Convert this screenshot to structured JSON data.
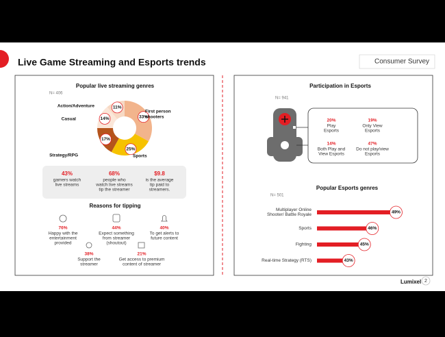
{
  "header": {
    "title": "Live Game Streaming and Esports trends",
    "tag": "Consumer Survey"
  },
  "streaming": {
    "title": "Popular live streaming genres",
    "n": "N= 406",
    "chart": {
      "type": "pie",
      "labels": [
        [
          "First person",
          "shooters"
        ],
        [
          "Sports"
        ],
        [
          "Strategy/RPG"
        ],
        [
          "Casual"
        ],
        [
          "Action/Adventure"
        ]
      ],
      "values": [
        33,
        25,
        17,
        14,
        11
      ],
      "value_labels": [
        "33%",
        "25%",
        "17%",
        "14%",
        "11%"
      ],
      "colors": [
        "#f2b48c",
        "#f6c200",
        "#b5541c",
        "#fbe6d8",
        "#f7d9c4"
      ]
    },
    "stats": [
      {
        "value": "43%",
        "lines": [
          "gamers watch",
          "live streams"
        ]
      },
      {
        "value": "68%",
        "lines": [
          "people who",
          "watch live streams",
          "tip the streamer"
        ]
      },
      {
        "value": "$9.8",
        "lines": [
          "is the average",
          "tip paid to",
          "streamers."
        ]
      }
    ],
    "reasons_title": "Reasons for tipping",
    "reasons": [
      {
        "value": "76%",
        "lines": [
          "Happy with the",
          "entertainment",
          "provided"
        ]
      },
      {
        "value": "44%",
        "lines": [
          "Expect something",
          "from streamer",
          "(shoutout)"
        ]
      },
      {
        "value": "40%",
        "lines": [
          "To get alerts to",
          "future content"
        ]
      },
      {
        "value": "38%",
        "lines": [
          "Support the",
          "streamer"
        ]
      },
      {
        "value": "21%",
        "lines": [
          "Get access to premium",
          "content of streamer"
        ]
      }
    ]
  },
  "esports": {
    "title": "Participation in Esports",
    "n": "N= 941",
    "items": [
      {
        "value": "20%",
        "lines": [
          "Play",
          "Esports"
        ]
      },
      {
        "value": "19%",
        "lines": [
          "Only View",
          "Esports"
        ]
      },
      {
        "value": "14%",
        "lines": [
          "Both Play and",
          "View Esports"
        ]
      },
      {
        "value": "47%",
        "lines": [
          "Do not play/view",
          "Esports"
        ]
      }
    ]
  },
  "genres": {
    "title": "Popular Esports genres",
    "n": "N= 501",
    "chart": {
      "type": "bar",
      "categories": [
        [
          "Multiplayer Online",
          "Shooter/ Battle Royale"
        ],
        [
          "Sports"
        ],
        [
          "Fighting"
        ],
        [
          "Real-time Strategy (RTS)"
        ]
      ],
      "values": [
        49,
        46,
        45,
        43
      ],
      "value_labels": [
        "49%",
        "46%",
        "45%",
        "43%"
      ],
      "color": "#e31e24",
      "xlim": [
        39,
        50
      ]
    }
  },
  "footer": {
    "brand": "Lumixel",
    "page": "2"
  }
}
